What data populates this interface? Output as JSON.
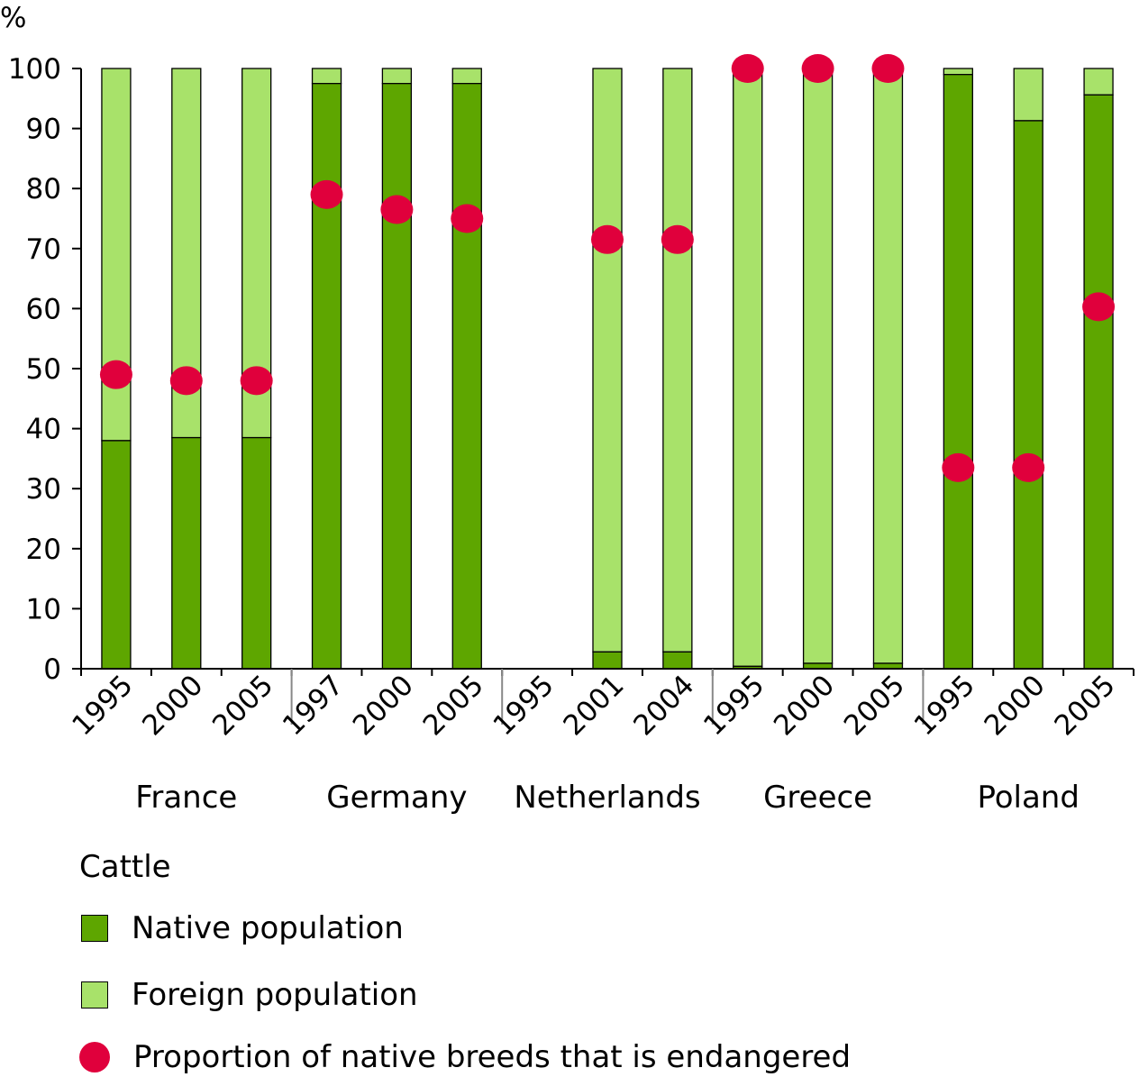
{
  "chart_data": {
    "type": "bar",
    "stacked": true,
    "yunit": "%",
    "ylim": [
      0,
      100
    ],
    "yticks": [
      0,
      10,
      20,
      30,
      40,
      50,
      60,
      70,
      80,
      90,
      100
    ],
    "grid": false,
    "legend_placement": "bottom",
    "groups": [
      {
        "name": "France",
        "categories": [
          "1995",
          "2000",
          "2005"
        ],
        "native": [
          38,
          38.5,
          38.5
        ],
        "foreign": [
          62,
          61.5,
          61.5
        ],
        "endangered": [
          49,
          48,
          48
        ]
      },
      {
        "name": "Germany",
        "categories": [
          "1997",
          "2000",
          "2005"
        ],
        "native": [
          97.5,
          97.5,
          97.5
        ],
        "foreign": [
          2.5,
          2.5,
          2.5
        ],
        "endangered": [
          79,
          76.5,
          75
        ]
      },
      {
        "name": "Netherlands",
        "categories": [
          "1995",
          "2001",
          "2004"
        ],
        "native": [
          null,
          2.8,
          2.8
        ],
        "foreign": [
          null,
          97.2,
          97.2
        ],
        "endangered": [
          null,
          71.5,
          71.5
        ]
      },
      {
        "name": "Greece",
        "categories": [
          "1995",
          "2000",
          "2005"
        ],
        "native": [
          0.4,
          0.9,
          0.9
        ],
        "foreign": [
          99.6,
          99.1,
          99.1
        ],
        "endangered": [
          100,
          100,
          100
        ]
      },
      {
        "name": "Poland",
        "categories": [
          "1995",
          "2000",
          "2005"
        ],
        "native": [
          99,
          91.3,
          95.6
        ],
        "foreign": [
          1,
          8.7,
          4.4
        ],
        "endangered": [
          33.5,
          33.5,
          60.3
        ]
      }
    ],
    "series": [
      {
        "key": "native",
        "name": "Native population",
        "color": "#5ea600"
      },
      {
        "key": "foreign",
        "name": "Foreign population",
        "color": "#a8e26a"
      },
      {
        "key": "endangered",
        "name": "Proportion of native breeds that is endangered",
        "color": "#e0003c"
      }
    ],
    "legend_title": "Cattle"
  }
}
